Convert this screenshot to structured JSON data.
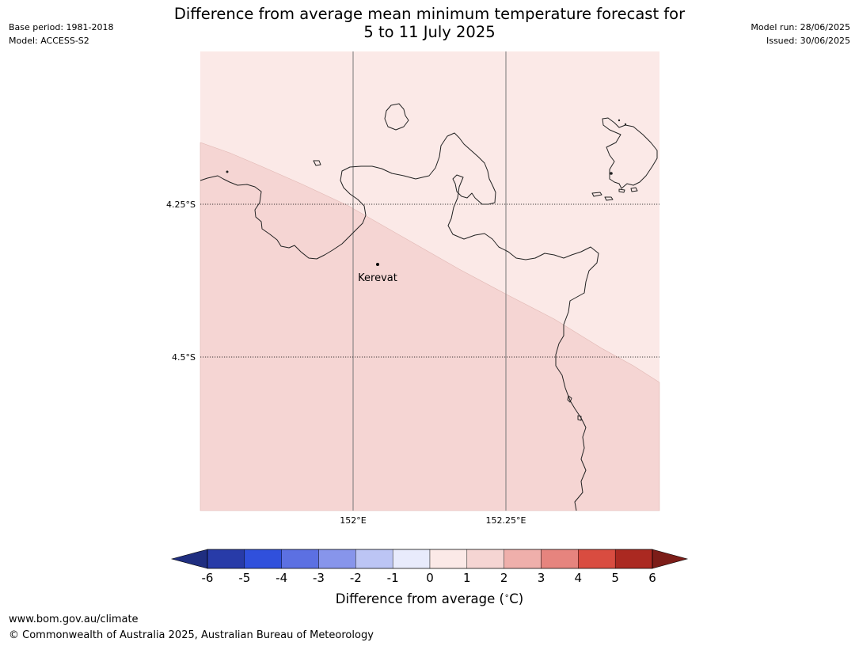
{
  "header": {
    "base_period": "Base period: 1981-2018",
    "model": "Model: ACCESS-S2",
    "model_run": "Model run: 28/06/2025",
    "issued": "Issued: 30/06/2025",
    "title_line1": "Difference from average mean minimum temperature forecast for",
    "title_line2": "5 to 11 July 2025"
  },
  "map": {
    "lat_labels": [
      "4.25°S",
      "4.5°S"
    ],
    "lon_labels": [
      "152°E",
      "152.25°E"
    ],
    "place": {
      "name": "Kerevat"
    },
    "fill_colors": {
      "anomaly_0_to_1": "#fbe9e7",
      "anomaly_1_to_2": "#f5d5d3"
    }
  },
  "colorbar": {
    "label": "Difference from average (",
    "label_unit": "C)",
    "label_degree": "∘",
    "ticks": [
      "-6",
      "-5",
      "-4",
      "-3",
      "-2",
      "-1",
      "0",
      "1",
      "2",
      "3",
      "4",
      "5",
      "6"
    ],
    "colors": [
      "#283ba8",
      "#3050dc",
      "#5c70e2",
      "#8795eb",
      "#bcc5f4",
      "#e8ebfc",
      "#fbe9e7",
      "#f5d5d3",
      "#efafab",
      "#e6847e",
      "#d94c40",
      "#ab2921"
    ],
    "low_extend_color": "#1f2e80",
    "high_extend_color": "#7c1d18"
  },
  "footer": {
    "url": "www.bom.gov.au/climate",
    "copyright": "© Commonwealth of Australia 2025, Australian Bureau of Meteorology"
  }
}
